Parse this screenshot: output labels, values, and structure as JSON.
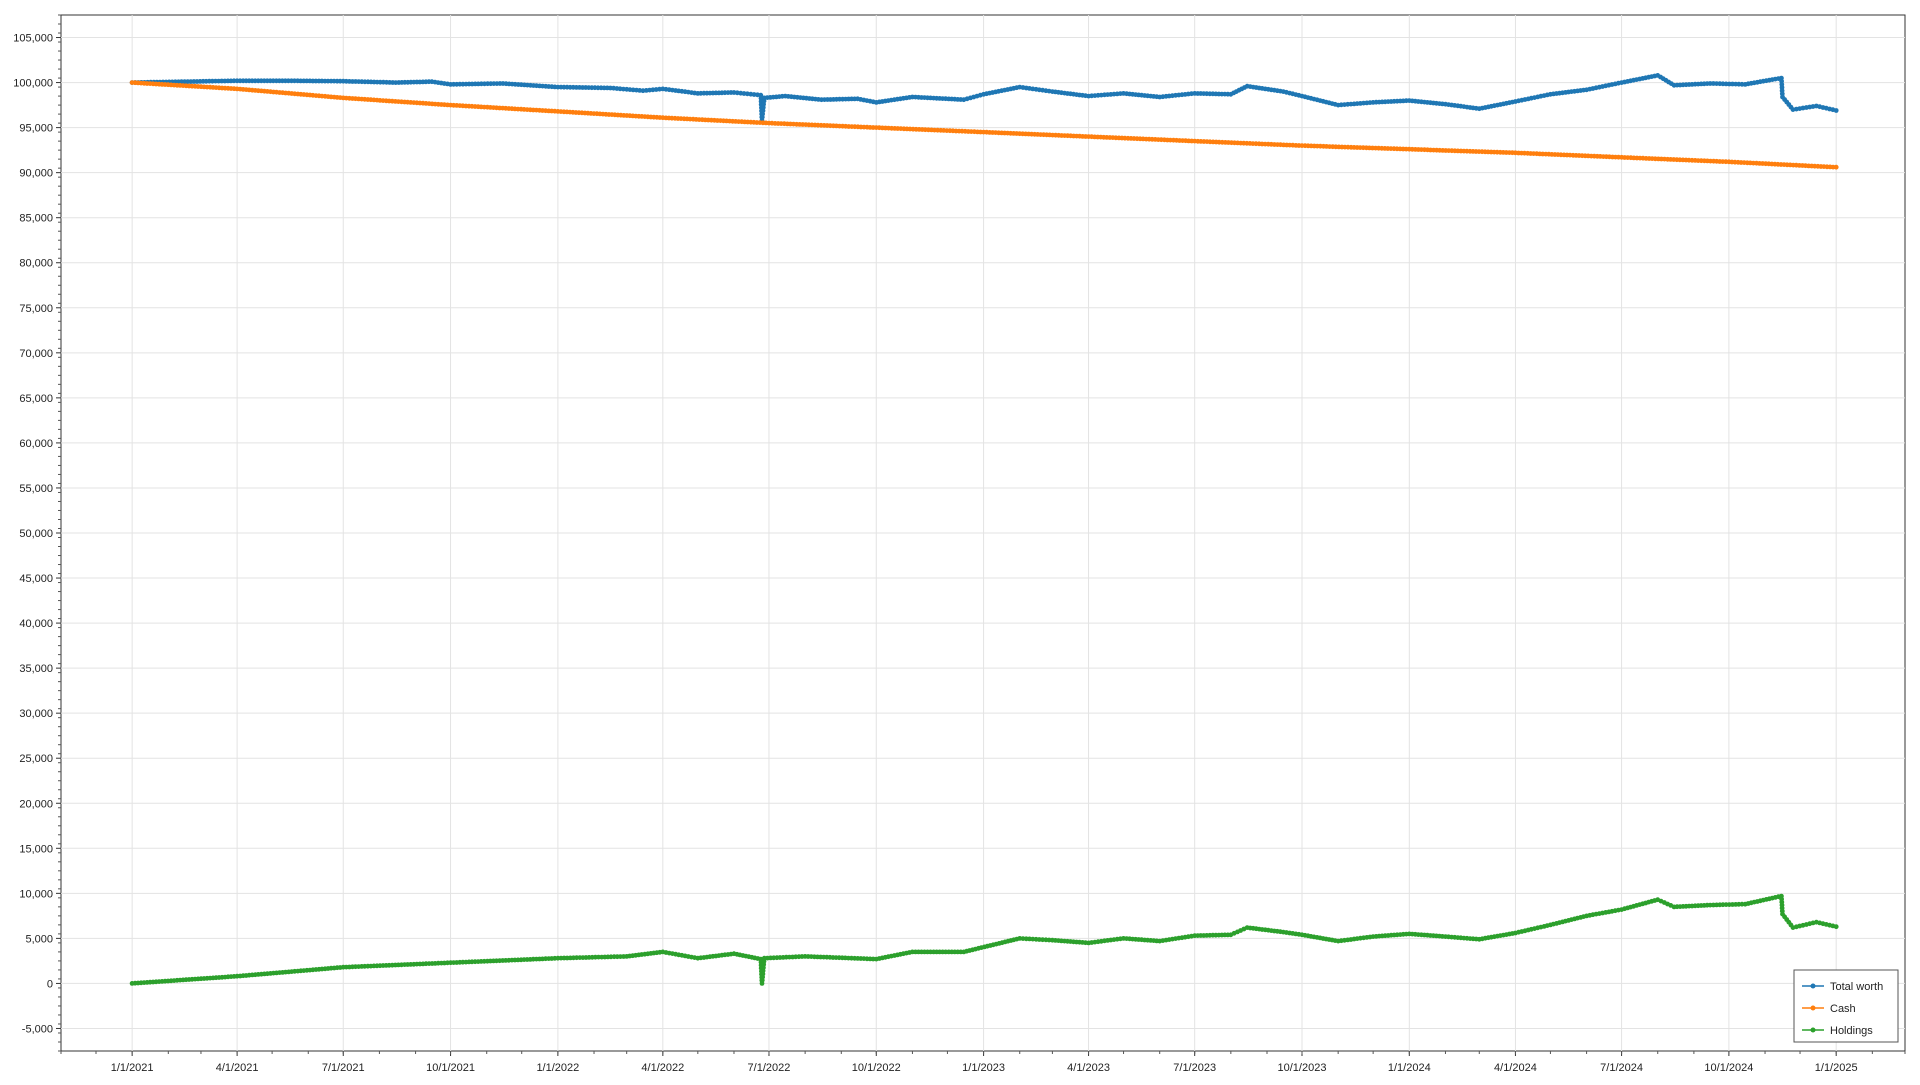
{
  "chart_data": {
    "type": "line",
    "title": "",
    "xlabel": "",
    "ylabel": "",
    "ylim": [
      -7500,
      107500
    ],
    "xlim": [
      "2020-11-01",
      "2025-03-01"
    ],
    "grid": true,
    "markers": true,
    "legend_position": "bottom-right",
    "y_ticks": [
      -5000,
      0,
      5000,
      10000,
      15000,
      20000,
      25000,
      30000,
      35000,
      40000,
      45000,
      50000,
      55000,
      60000,
      65000,
      70000,
      75000,
      80000,
      85000,
      90000,
      95000,
      100000,
      105000
    ],
    "y_tick_labels": [
      "-5,000",
      "0",
      "5,000",
      "10,000",
      "15,000",
      "20,000",
      "25,000",
      "30,000",
      "35,000",
      "40,000",
      "45,000",
      "50,000",
      "55,000",
      "60,000",
      "65,000",
      "70,000",
      "75,000",
      "80,000",
      "85,000",
      "90,000",
      "95,000",
      "100,000",
      "105,000"
    ],
    "x_ticks": [
      "2021-01-01",
      "2021-04-01",
      "2021-07-01",
      "2021-10-01",
      "2022-01-01",
      "2022-04-01",
      "2022-07-01",
      "2022-10-01",
      "2023-01-01",
      "2023-04-01",
      "2023-07-01",
      "2023-10-01",
      "2024-01-01",
      "2024-04-01",
      "2024-07-01",
      "2024-10-01",
      "2025-01-01"
    ],
    "x_tick_labels": [
      "1/1/2021",
      "4/1/2021",
      "7/1/2021",
      "10/1/2021",
      "1/1/2022",
      "4/1/2022",
      "7/1/2022",
      "10/1/2022",
      "1/1/2023",
      "4/1/2023",
      "7/1/2023",
      "10/1/2023",
      "1/1/2024",
      "4/1/2024",
      "7/1/2024",
      "10/1/2024",
      "1/1/2025"
    ],
    "series": [
      {
        "name": "Total worth",
        "color": "#1f77b4",
        "points": [
          [
            "2021-01-01",
            100000
          ],
          [
            "2021-02-15",
            100100
          ],
          [
            "2021-04-01",
            100200
          ],
          [
            "2021-05-15",
            100200
          ],
          [
            "2021-07-01",
            100150
          ],
          [
            "2021-08-15",
            100000
          ],
          [
            "2021-09-15",
            100100
          ],
          [
            "2021-10-01",
            99800
          ],
          [
            "2021-11-15",
            99900
          ],
          [
            "2022-01-01",
            99500
          ],
          [
            "2022-02-15",
            99400
          ],
          [
            "2022-03-15",
            99100
          ],
          [
            "2022-04-01",
            99300
          ],
          [
            "2022-05-01",
            98800
          ],
          [
            "2022-06-01",
            98900
          ],
          [
            "2022-06-24",
            98600
          ],
          [
            "2022-06-25",
            95800
          ],
          [
            "2022-06-27",
            98300
          ],
          [
            "2022-07-15",
            98500
          ],
          [
            "2022-08-15",
            98100
          ],
          [
            "2022-09-15",
            98200
          ],
          [
            "2022-10-01",
            97800
          ],
          [
            "2022-11-01",
            98400
          ],
          [
            "2022-12-15",
            98100
          ],
          [
            "2023-01-01",
            98700
          ],
          [
            "2023-02-01",
            99500
          ],
          [
            "2023-03-01",
            99000
          ],
          [
            "2023-04-01",
            98500
          ],
          [
            "2023-05-01",
            98800
          ],
          [
            "2023-06-01",
            98400
          ],
          [
            "2023-07-01",
            98800
          ],
          [
            "2023-08-01",
            98700
          ],
          [
            "2023-08-15",
            99600
          ],
          [
            "2023-09-15",
            99000
          ],
          [
            "2023-10-01",
            98500
          ],
          [
            "2023-11-01",
            97500
          ],
          [
            "2023-12-01",
            97800
          ],
          [
            "2024-01-01",
            98000
          ],
          [
            "2024-02-01",
            97600
          ],
          [
            "2024-03-01",
            97100
          ],
          [
            "2024-04-01",
            97900
          ],
          [
            "2024-05-01",
            98700
          ],
          [
            "2024-06-01",
            99200
          ],
          [
            "2024-07-01",
            100000
          ],
          [
            "2024-08-01",
            100800
          ],
          [
            "2024-08-15",
            99700
          ],
          [
            "2024-09-15",
            99900
          ],
          [
            "2024-10-15",
            99800
          ],
          [
            "2024-11-15",
            100500
          ],
          [
            "2024-11-16",
            98400
          ],
          [
            "2024-11-25",
            97000
          ],
          [
            "2024-12-15",
            97400
          ],
          [
            "2025-01-01",
            96900
          ]
        ]
      },
      {
        "name": "Cash",
        "color": "#ff7f0e",
        "points": [
          [
            "2021-01-01",
            100000
          ],
          [
            "2021-04-01",
            99300
          ],
          [
            "2021-07-01",
            98300
          ],
          [
            "2021-10-01",
            97500
          ],
          [
            "2022-01-01",
            96800
          ],
          [
            "2022-04-01",
            96100
          ],
          [
            "2022-07-01",
            95500
          ],
          [
            "2022-10-01",
            95000
          ],
          [
            "2023-01-01",
            94500
          ],
          [
            "2023-04-01",
            94000
          ],
          [
            "2023-07-01",
            93500
          ],
          [
            "2023-10-01",
            93000
          ],
          [
            "2024-01-01",
            92600
          ],
          [
            "2024-04-01",
            92200
          ],
          [
            "2024-07-01",
            91700
          ],
          [
            "2024-10-01",
            91200
          ],
          [
            "2025-01-01",
            90600
          ]
        ]
      },
      {
        "name": "Holdings",
        "color": "#2ca02c",
        "points": [
          [
            "2021-01-01",
            0
          ],
          [
            "2021-04-01",
            800
          ],
          [
            "2021-07-01",
            1800
          ],
          [
            "2021-10-01",
            2300
          ],
          [
            "2022-01-01",
            2800
          ],
          [
            "2022-03-01",
            3000
          ],
          [
            "2022-04-01",
            3500
          ],
          [
            "2022-05-01",
            2800
          ],
          [
            "2022-06-01",
            3300
          ],
          [
            "2022-06-24",
            2700
          ],
          [
            "2022-06-25",
            0
          ],
          [
            "2022-06-27",
            2800
          ],
          [
            "2022-08-01",
            3000
          ],
          [
            "2022-10-01",
            2700
          ],
          [
            "2022-11-01",
            3500
          ],
          [
            "2022-12-15",
            3500
          ],
          [
            "2023-02-01",
            5000
          ],
          [
            "2023-03-01",
            4800
          ],
          [
            "2023-04-01",
            4500
          ],
          [
            "2023-05-01",
            5000
          ],
          [
            "2023-06-01",
            4700
          ],
          [
            "2023-07-01",
            5300
          ],
          [
            "2023-08-01",
            5400
          ],
          [
            "2023-08-15",
            6200
          ],
          [
            "2023-09-15",
            5700
          ],
          [
            "2023-10-01",
            5400
          ],
          [
            "2023-11-01",
            4700
          ],
          [
            "2023-12-01",
            5200
          ],
          [
            "2024-01-01",
            5500
          ],
          [
            "2024-02-01",
            5200
          ],
          [
            "2024-03-01",
            4900
          ],
          [
            "2024-04-01",
            5600
          ],
          [
            "2024-05-01",
            6500
          ],
          [
            "2024-06-01",
            7500
          ],
          [
            "2024-07-01",
            8200
          ],
          [
            "2024-08-01",
            9300
          ],
          [
            "2024-08-15",
            8500
          ],
          [
            "2024-09-15",
            8700
          ],
          [
            "2024-10-15",
            8800
          ],
          [
            "2024-11-15",
            9700
          ],
          [
            "2024-11-16",
            7700
          ],
          [
            "2024-11-25",
            6200
          ],
          [
            "2024-12-15",
            6800
          ],
          [
            "2025-01-01",
            6300
          ]
        ]
      }
    ]
  }
}
